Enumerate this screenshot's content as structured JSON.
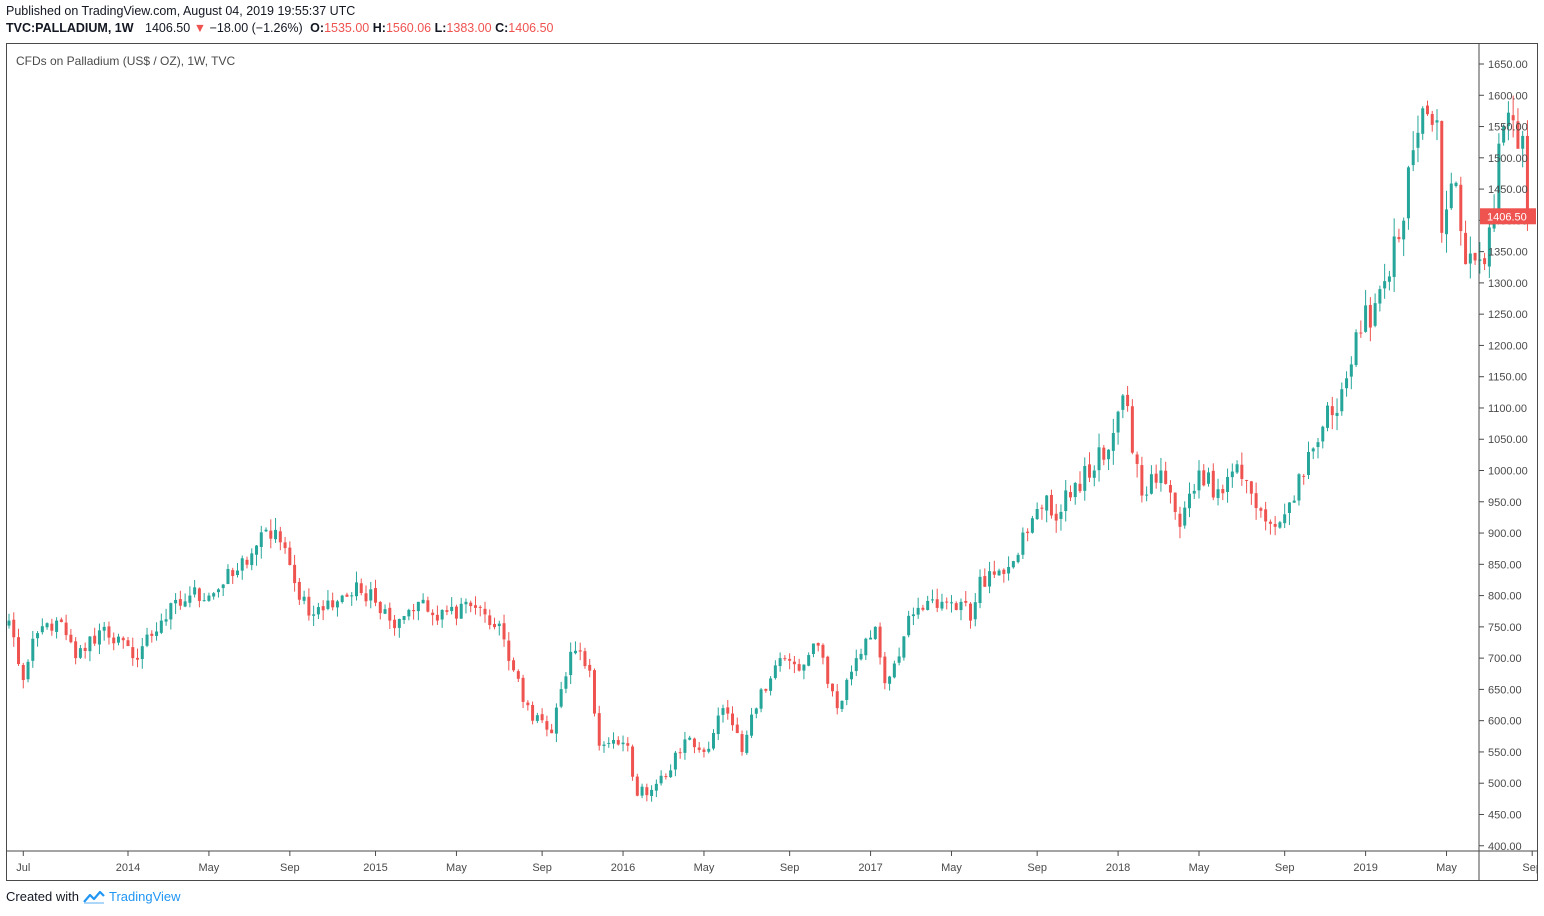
{
  "header": {
    "published": "Published on TradingView.com, August 04, 2019 19:55:37 UTC",
    "symbol": "TVC:PALLADIUM, 1W",
    "last": "1406.50",
    "change": "−18.00 (−1.26%)",
    "o_label": "O:",
    "o_value": "1535.00",
    "h_label": "H:",
    "h_value": "1560.06",
    "l_label": "L:",
    "l_value": "1383.00",
    "c_label": "C:",
    "c_value": "1406.50"
  },
  "footer": {
    "created_with": "Created with",
    "brand": "TradingView"
  },
  "colors": {
    "up": "#26a69a",
    "down": "#ef5350",
    "axis_text": "#4a4a4a",
    "frame": "#4a4a4a",
    "last_tag": "#ef5350"
  },
  "chart_data": {
    "type": "candlestick",
    "title": "CFDs on Palladium (US$ / OZ), 1W, TVC",
    "interval": "1W",
    "ylim": [
      400,
      1650
    ],
    "y_ticks": [
      400,
      450,
      500,
      550,
      600,
      650,
      700,
      750,
      800,
      850,
      900,
      950,
      1000,
      1050,
      1100,
      1150,
      1200,
      1250,
      1300,
      1350,
      1400,
      1450,
      1500,
      1550,
      1600,
      1650
    ],
    "x_ticks": [
      {
        "label": "Jul",
        "week": 3
      },
      {
        "label": "2014",
        "week": 25
      },
      {
        "label": "May",
        "week": 42
      },
      {
        "label": "Sep",
        "week": 59
      },
      {
        "label": "2015",
        "week": 77
      },
      {
        "label": "May",
        "week": 94
      },
      {
        "label": "Sep",
        "week": 112
      },
      {
        "label": "2016",
        "week": 129
      },
      {
        "label": "May",
        "week": 146
      },
      {
        "label": "Sep",
        "week": 164
      },
      {
        "label": "2017",
        "week": 181
      },
      {
        "label": "May",
        "week": 198
      },
      {
        "label": "Sep",
        "week": 216
      },
      {
        "label": "2018",
        "week": 233
      },
      {
        "label": "May",
        "week": 250
      },
      {
        "label": "Sep",
        "week": 268
      },
      {
        "label": "2019",
        "week": 285
      },
      {
        "label": "May",
        "week": 302
      },
      {
        "label": "Sep",
        "week": 320
      }
    ],
    "last_price_label": "1406.50",
    "anchors": [
      [
        0,
        760
      ],
      [
        3,
        665
      ],
      [
        6,
        740
      ],
      [
        10,
        760
      ],
      [
        14,
        700
      ],
      [
        20,
        750
      ],
      [
        26,
        700
      ],
      [
        32,
        760
      ],
      [
        38,
        800
      ],
      [
        44,
        810
      ],
      [
        48,
        840
      ],
      [
        52,
        880
      ],
      [
        56,
        905
      ],
      [
        60,
        820
      ],
      [
        64,
        770
      ],
      [
        70,
        800
      ],
      [
        76,
        810
      ],
      [
        80,
        760
      ],
      [
        86,
        790
      ],
      [
        90,
        760
      ],
      [
        96,
        790
      ],
      [
        100,
        770
      ],
      [
        104,
        730
      ],
      [
        108,
        630
      ],
      [
        114,
        580
      ],
      [
        118,
        710
      ],
      [
        122,
        680
      ],
      [
        124,
        560
      ],
      [
        130,
        560
      ],
      [
        132,
        480
      ],
      [
        138,
        510
      ],
      [
        142,
        570
      ],
      [
        146,
        550
      ],
      [
        150,
        620
      ],
      [
        154,
        550
      ],
      [
        158,
        650
      ],
      [
        162,
        700
      ],
      [
        166,
        680
      ],
      [
        170,
        720
      ],
      [
        174,
        620
      ],
      [
        178,
        700
      ],
      [
        182,
        750
      ],
      [
        184,
        660
      ],
      [
        190,
        770
      ],
      [
        196,
        790
      ],
      [
        200,
        790
      ],
      [
        202,
        760
      ],
      [
        204,
        830
      ],
      [
        208,
        840
      ],
      [
        214,
        900
      ],
      [
        218,
        960
      ],
      [
        220,
        920
      ],
      [
        224,
        980
      ],
      [
        228,
        1000
      ],
      [
        232,
        1060
      ],
      [
        234,
        1120
      ],
      [
        238,
        960
      ],
      [
        242,
        1000
      ],
      [
        246,
        910
      ],
      [
        250,
        1000
      ],
      [
        254,
        970
      ],
      [
        258,
        1010
      ],
      [
        262,
        940
      ],
      [
        266,
        910
      ],
      [
        268,
        930
      ],
      [
        272,
        990
      ],
      [
        276,
        1070
      ],
      [
        280,
        1130
      ],
      [
        284,
        1220
      ],
      [
        288,
        1290
      ],
      [
        292,
        1370
      ],
      [
        296,
        1540
      ],
      [
        300,
        1560
      ],
      [
        301,
        1380
      ],
      [
        304,
        1460
      ],
      [
        306,
        1330
      ],
      [
        310,
        1330
      ],
      [
        314,
        1550
      ],
      [
        316,
        1560
      ],
      [
        318,
        1535
      ],
      [
        319,
        1406.5
      ]
    ],
    "last_candle": {
      "open": 1535.0,
      "high": 1560.06,
      "low": 1383.0,
      "close": 1406.5
    }
  }
}
